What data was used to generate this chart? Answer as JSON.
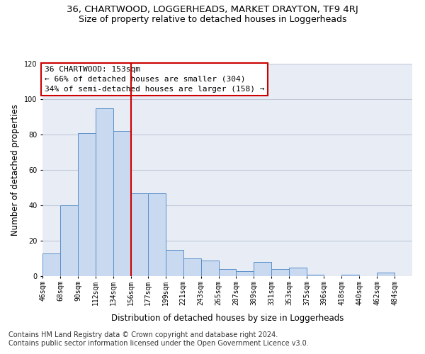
{
  "title1": "36, CHARTWOOD, LOGGERHEADS, MARKET DRAYTON, TF9 4RJ",
  "title2": "Size of property relative to detached houses in Loggerheads",
  "xlabel": "Distribution of detached houses by size in Loggerheads",
  "ylabel": "Number of detached properties",
  "footnote1": "Contains HM Land Registry data © Crown copyright and database right 2024.",
  "footnote2": "Contains public sector information licensed under the Open Government Licence v3.0.",
  "annotation_line1": "36 CHARTWOOD: 153sqm",
  "annotation_line2": "← 66% of detached houses are smaller (304)",
  "annotation_line3": "34% of semi-detached houses are larger (158) →",
  "bar_left_edges": [
    46,
    68,
    90,
    112,
    134,
    156,
    177,
    199,
    221,
    243,
    265,
    287,
    309,
    331,
    353,
    375,
    396,
    418,
    440,
    462
  ],
  "bar_widths": [
    22,
    22,
    22,
    22,
    22,
    21,
    22,
    22,
    22,
    22,
    22,
    22,
    22,
    22,
    22,
    21,
    22,
    22,
    22,
    22
  ],
  "bar_heights": [
    13,
    40,
    81,
    95,
    82,
    47,
    47,
    15,
    10,
    9,
    4,
    3,
    8,
    4,
    5,
    1,
    0,
    1,
    0,
    2
  ],
  "tick_labels": [
    "46sqm",
    "68sqm",
    "90sqm",
    "112sqm",
    "134sqm",
    "156sqm",
    "177sqm",
    "199sqm",
    "221sqm",
    "243sqm",
    "265sqm",
    "287sqm",
    "309sqm",
    "331sqm",
    "353sqm",
    "375sqm",
    "396sqm",
    "418sqm",
    "440sqm",
    "462sqm",
    "484sqm"
  ],
  "bar_color": "#c9d9f0",
  "bar_edge_color": "#5b8fc9",
  "vline_x": 156,
  "vline_color": "#cc0000",
  "ylim": [
    0,
    120
  ],
  "yticks": [
    0,
    20,
    40,
    60,
    80,
    100,
    120
  ],
  "grid_color": "#c0c8d8",
  "bg_color": "#e8ecf5",
  "annotation_box_color": "#ffffff",
  "annotation_box_edge_color": "#cc0000",
  "title1_fontsize": 9.5,
  "title2_fontsize": 9,
  "axis_label_fontsize": 8.5,
  "tick_fontsize": 7,
  "annotation_fontsize": 8,
  "footnote_fontsize": 7
}
